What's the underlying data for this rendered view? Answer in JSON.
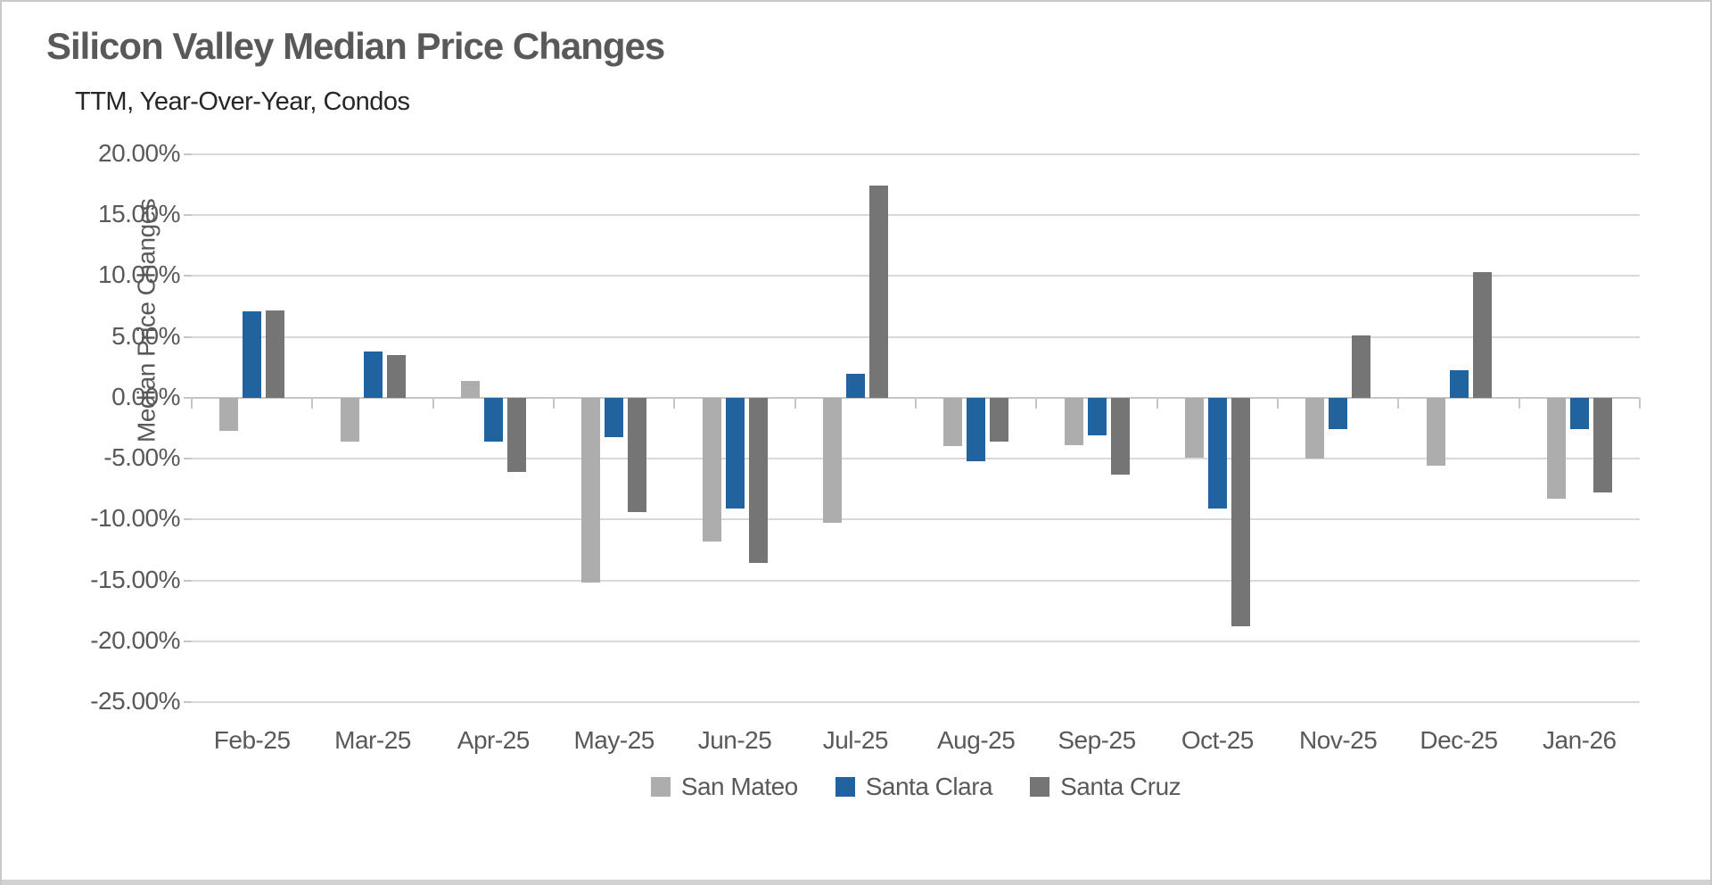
{
  "header": {
    "title": "Silicon Valley Median Price Changes",
    "subtitle": "TTM, Year-Over-Year, Condos"
  },
  "chart_data": {
    "type": "bar",
    "title": "Silicon Valley Median Price Changes",
    "subtitle": "TTM, Year-Over-Year, Condos",
    "xlabel": "",
    "ylabel": "Median Price Changes",
    "ylim": [
      -25,
      20
    ],
    "ytick_step": 5,
    "yticks": [
      "20.00%",
      "15.00%",
      "10.00%",
      "5.00%",
      "0.00%",
      "-5.00%",
      "-10.00%",
      "-15.00%",
      "-20.00%",
      "-25.00%"
    ],
    "ytick_values": [
      20,
      15,
      10,
      5,
      0,
      -5,
      -10,
      -15,
      -20,
      -25
    ],
    "grid": "horizontal",
    "legend_position": "bottom",
    "categories": [
      "Feb-25",
      "Mar-25",
      "Apr-25",
      "May-25",
      "Jun-25",
      "Jul-25",
      "Aug-25",
      "Sep-25",
      "Oct-25",
      "Nov-25",
      "Dec-25",
      "Jan-26"
    ],
    "series": [
      {
        "name": "San Mateo",
        "color": "#adadad",
        "values": [
          -2.7,
          -3.6,
          1.4,
          -15.2,
          -11.8,
          -10.3,
          -4.0,
          -3.9,
          -4.9,
          -5.0,
          -5.6,
          -8.3
        ]
      },
      {
        "name": "Santa Clara",
        "color": "#20639e",
        "values": [
          7.1,
          3.8,
          -3.6,
          -3.2,
          -9.1,
          2.0,
          -5.2,
          -3.1,
          -9.1,
          -2.6,
          2.3,
          -2.6
        ]
      },
      {
        "name": "Santa Cruz",
        "color": "#757575",
        "values": [
          7.2,
          3.5,
          -6.1,
          -9.4,
          -13.6,
          17.4,
          -3.6,
          -6.3,
          -18.8,
          5.1,
          10.3,
          -7.8
        ]
      }
    ]
  },
  "colors": {
    "gridline": "#d9d9d9",
    "axis_line": "#c6c6c6",
    "title_text": "#595959",
    "subtitle_text": "#262626",
    "tick_label_text": "#595959",
    "legend_text": "#595959",
    "background": "#ffffff",
    "window_border": "#c9c9c9"
  }
}
